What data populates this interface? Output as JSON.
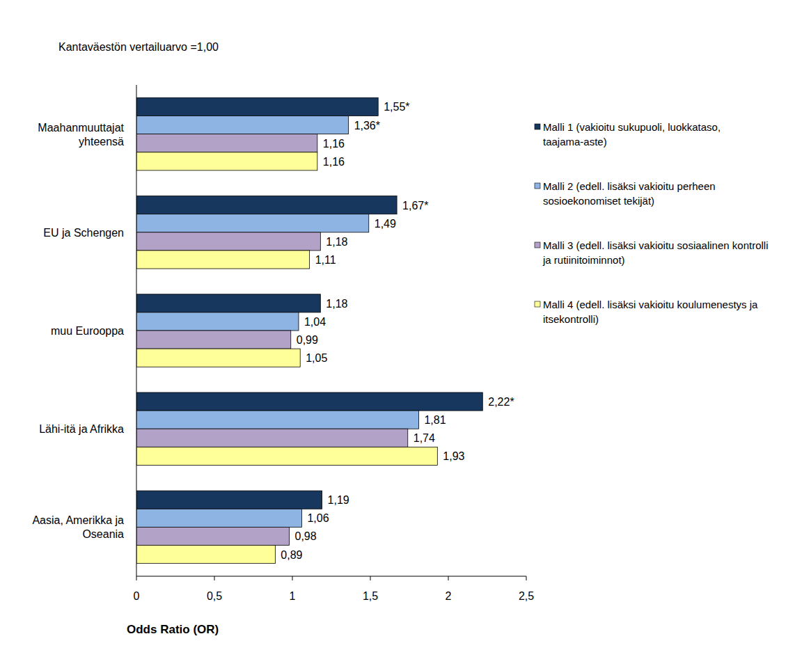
{
  "chart_data": {
    "type": "bar",
    "orientation": "horizontal",
    "title": "Kantaväestön vertailuarvo =1,00",
    "xlabel": "Odds Ratio (OR)",
    "categories": [
      "Maahanmuuttajat yhteensä",
      "EU ja Schengen",
      "muu Eurooppa",
      "Lähi-itä ja Afrikka",
      "Aasia, Amerikka ja Oseania"
    ],
    "series": [
      {
        "name": "Malli 1 (vakioitu sukupuoli, luokkataso, taajama-aste)",
        "color": "#17375e",
        "values": [
          1.55,
          1.67,
          1.18,
          2.22,
          1.19
        ],
        "value_labels": [
          "1,55*",
          "1,67*",
          "1,18",
          "2,22*",
          "1,19"
        ]
      },
      {
        "name": "Malli 2 (edell. lisäksi vakioitu perheen sosioekonomiset tekijät)",
        "color": "#8eb4e3",
        "values": [
          1.36,
          1.49,
          1.04,
          1.81,
          1.06
        ],
        "value_labels": [
          "1,36*",
          "1,49",
          "1,04",
          "1,81",
          "1,06"
        ]
      },
      {
        "name": "Malli 3 (edell. lisäksi vakioitu sosiaalinen kontrolli ja rutiinitoiminnot)",
        "color": "#b3a2c7",
        "values": [
          1.16,
          1.18,
          0.99,
          1.74,
          0.98
        ],
        "value_labels": [
          "1,16",
          "1,18",
          "0,99",
          "1,74",
          "0,98"
        ]
      },
      {
        "name": "Malli 4 (edell. lisäksi vakioitu koulumenestys ja itsekontrolli)",
        "color": "#ffff99",
        "values": [
          1.16,
          1.11,
          1.05,
          1.93,
          0.89
        ],
        "value_labels": [
          "1,16",
          "1,11",
          "1,05",
          "1,93",
          "0,89"
        ]
      }
    ],
    "xlim": [
      0,
      2.5
    ],
    "xticks": [
      0,
      {
        "value": 0.5,
        "label": "0,5"
      },
      1,
      {
        "value": 1.5,
        "label": "1,5"
      },
      2,
      {
        "value": 2.5,
        "label": "2,5"
      }
    ],
    "grid": false,
    "legend": "right",
    "data_labels": true
  }
}
